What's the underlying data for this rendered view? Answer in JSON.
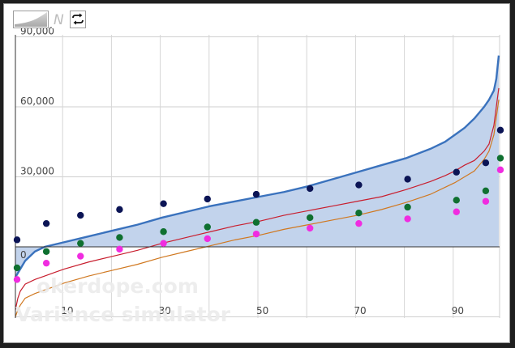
{
  "toolbar": {
    "buttons": [
      {
        "icon": "area-chart-icon"
      },
      {
        "icon": "script-n-icon"
      },
      {
        "icon": "swap-arrows-icon"
      }
    ]
  },
  "watermark": {
    "line1": "okerdope.com",
    "line2": "Variance simulator"
  },
  "zero_label": "0",
  "chart_data": {
    "type": "line",
    "title": "",
    "xlabel": "",
    "ylabel": "",
    "xlim": [
      0,
      100
    ],
    "ylim": [
      -30000,
      90000
    ],
    "yticks": [
      30000,
      60000,
      90000
    ],
    "ytick_labels": [
      "30,000",
      "60,000",
      "90,000"
    ],
    "xticks": [
      10,
      30,
      50,
      70,
      90
    ],
    "xtick_labels": [
      "10",
      "30",
      "50",
      "70",
      "90"
    ],
    "grid": true,
    "colors": {
      "area_fill": "#c2d3ec",
      "area_line": "#3a72bd",
      "red_line": "#c81e2e",
      "orange_line": "#d07820",
      "navy_dots": "#0b1455",
      "green_dots": "#0f7030",
      "magenta_dots": "#f02ce0"
    },
    "series": [
      {
        "kind": "area",
        "color_key": "area_line",
        "x": [
          0,
          2,
          4,
          6,
          8,
          10,
          15,
          20,
          25,
          30,
          35,
          40,
          45,
          50,
          55,
          60,
          65,
          70,
          75,
          80,
          85,
          88,
          90,
          92,
          94,
          95,
          96,
          97,
          98,
          98.5,
          99
        ],
        "y": [
          -13000,
          -6000,
          -2000,
          0,
          1000,
          2000,
          4500,
          7000,
          9500,
          12500,
          15000,
          17500,
          19500,
          21500,
          23500,
          26000,
          29000,
          32000,
          35000,
          38000,
          42000,
          45000,
          48000,
          51000,
          55000,
          57500,
          60000,
          63000,
          67000,
          72000,
          82000
        ]
      },
      {
        "kind": "line",
        "color_key": "red_line",
        "x": [
          0,
          0.5,
          1,
          2,
          4,
          6,
          8,
          10,
          15,
          20,
          25,
          30,
          35,
          40,
          45,
          50,
          55,
          60,
          65,
          70,
          75,
          80,
          85,
          88,
          90,
          92,
          94,
          95,
          96,
          97,
          98,
          99
        ],
        "y": [
          -27000,
          -22000,
          -19000,
          -16000,
          -14000,
          -12500,
          -11000,
          -9500,
          -6500,
          -4000,
          -1500,
          1500,
          4000,
          6500,
          9000,
          11000,
          13500,
          15500,
          17500,
          19500,
          21500,
          24500,
          28000,
          30500,
          32500,
          35000,
          37000,
          39000,
          41000,
          44000,
          52000,
          68000
        ]
      },
      {
        "kind": "line",
        "color_key": "orange_line",
        "x": [
          0,
          0.5,
          1,
          2,
          4,
          6,
          8,
          10,
          15,
          20,
          25,
          30,
          35,
          40,
          45,
          50,
          55,
          60,
          65,
          70,
          75,
          80,
          85,
          88,
          90,
          92,
          94,
          95,
          96,
          97,
          98,
          99
        ],
        "y": [
          -30000,
          -27000,
          -25000,
          -22000,
          -20000,
          -18500,
          -17000,
          -15500,
          -12500,
          -10000,
          -7500,
          -4500,
          -2000,
          500,
          3000,
          5000,
          7500,
          9500,
          11500,
          13500,
          16000,
          19000,
          22500,
          25500,
          27500,
          30000,
          32500,
          35000,
          37500,
          41000,
          48000,
          63000
        ]
      },
      {
        "kind": "dots",
        "color_key": "navy_dots",
        "x": [
          0,
          6,
          13,
          21,
          30,
          39,
          49,
          60,
          70,
          80,
          90,
          96,
          99
        ],
        "y": [
          3000,
          10000,
          13500,
          16000,
          18500,
          20500,
          22500,
          25000,
          26500,
          29000,
          32000,
          36000,
          50000
        ]
      },
      {
        "kind": "dots",
        "color_key": "green_dots",
        "x": [
          0,
          6,
          13,
          21,
          30,
          39,
          49,
          60,
          70,
          80,
          90,
          96,
          99
        ],
        "y": [
          -9000,
          -2000,
          1500,
          4000,
          6500,
          8500,
          10500,
          12500,
          14500,
          17000,
          20000,
          24000,
          38000
        ]
      },
      {
        "kind": "dots",
        "color_key": "magenta_dots",
        "x": [
          0,
          6,
          13,
          21,
          30,
          39,
          49,
          60,
          70,
          80,
          90,
          96,
          99
        ],
        "y": [
          -14000,
          -7000,
          -4000,
          -1000,
          1500,
          3500,
          5500,
          8000,
          10000,
          12000,
          15000,
          19500,
          33000
        ]
      }
    ]
  }
}
